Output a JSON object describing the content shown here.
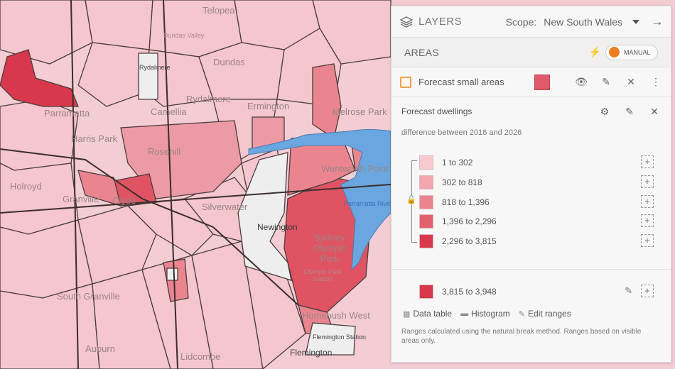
{
  "header": {
    "layers_label": "LAYERS",
    "scope_label": "Scope:",
    "scope_value": "New South Wales"
  },
  "areas": {
    "label": "AREAS",
    "toggle_label": "MANUAL"
  },
  "layer": {
    "name": "Forecast small areas"
  },
  "indicator": {
    "title": "Forecast dwellings",
    "subtitle": "difference between 2016 and 2026"
  },
  "legend": {
    "ranges": [
      {
        "label": "1 to 302",
        "color": "#f7c9cf"
      },
      {
        "label": "302 to 818",
        "color": "#f2a6b0"
      },
      {
        "label": "818 to 1,396",
        "color": "#ea8590"
      },
      {
        "label": "1,396 to 2,296",
        "color": "#e2616f"
      },
      {
        "label": "2,296 to 3,815",
        "color": "#d9384c"
      }
    ],
    "extra": {
      "label": "3,815 to 3,948",
      "color": "#d7384a"
    }
  },
  "links": {
    "data_table": "Data table",
    "histogram": "Histogram",
    "edit_ranges": "Edit ranges"
  },
  "note": "Ranges calculated using the natural break method. Ranges based on visible areas only.",
  "map_labels": {
    "parramatta": "Parramatta",
    "harris_park": "Harris Park",
    "rosehill": "Rosehill",
    "camellia": "Camellia",
    "rydalmere": "Rydalmere",
    "ermington": "Ermington",
    "dundas": "Dundas",
    "telopea": "Telopea",
    "dundas_valley": "Dundas Valley",
    "melrose_park": "Melrose Park",
    "wentworth_point": "Wentworth Point",
    "holroyd": "Holroyd",
    "clyde": "Clyde",
    "granville": "Granville",
    "silverwater": "Silverwater",
    "newington": "Newington",
    "sydney_olympic_park": "Sydney Olympic Park",
    "homebush_west": "Homebush West",
    "flemington": "Flemington",
    "flemington_station": "Flemington Station",
    "olympic_park_station": "Olympic Park Station",
    "lidcombe": "Lidcombe",
    "south_granville": "South Granville",
    "auburn": "Auburn",
    "rydalmere_station": "Rydalmere",
    "parramatta_river": "Parramatta River"
  }
}
